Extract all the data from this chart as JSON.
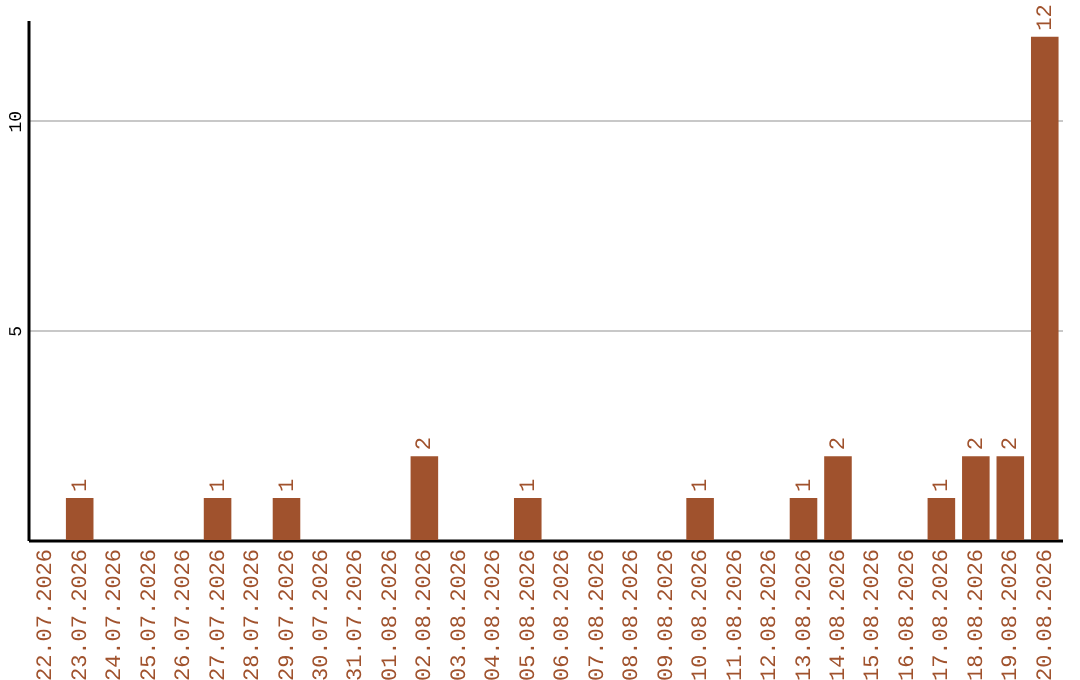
{
  "chart_data": {
    "type": "bar",
    "categories": [
      "22.07.2026",
      "23.07.2026",
      "24.07.2026",
      "25.07.2026",
      "26.07.2026",
      "27.07.2026",
      "28.07.2026",
      "29.07.2026",
      "30.07.2026",
      "31.07.2026",
      "01.08.2026",
      "02.08.2026",
      "03.08.2026",
      "04.08.2026",
      "05.08.2026",
      "06.08.2026",
      "07.08.2026",
      "08.08.2026",
      "09.08.2026",
      "10.08.2026",
      "11.08.2026",
      "12.08.2026",
      "13.08.2026",
      "14.08.2026",
      "15.08.2026",
      "16.08.2026",
      "17.08.2026",
      "18.08.2026",
      "19.08.2026",
      "20.08.2026"
    ],
    "values": [
      0,
      1,
      0,
      0,
      0,
      1,
      0,
      1,
      0,
      0,
      0,
      2,
      0,
      0,
      1,
      0,
      0,
      0,
      0,
      1,
      0,
      0,
      1,
      2,
      0,
      0,
      1,
      2,
      2,
      12
    ],
    "value_labels": [
      null,
      "1",
      null,
      null,
      null,
      "1",
      null,
      "1",
      null,
      null,
      null,
      "2",
      null,
      null,
      "1",
      null,
      null,
      null,
      null,
      "1",
      null,
      null,
      "1",
      "2",
      null,
      null,
      "1",
      "2",
      "2",
      "12"
    ],
    "color": "#a0522d",
    "ylim": [
      0,
      12.4
    ],
    "yticks": [
      5,
      10
    ],
    "grid": "y"
  }
}
